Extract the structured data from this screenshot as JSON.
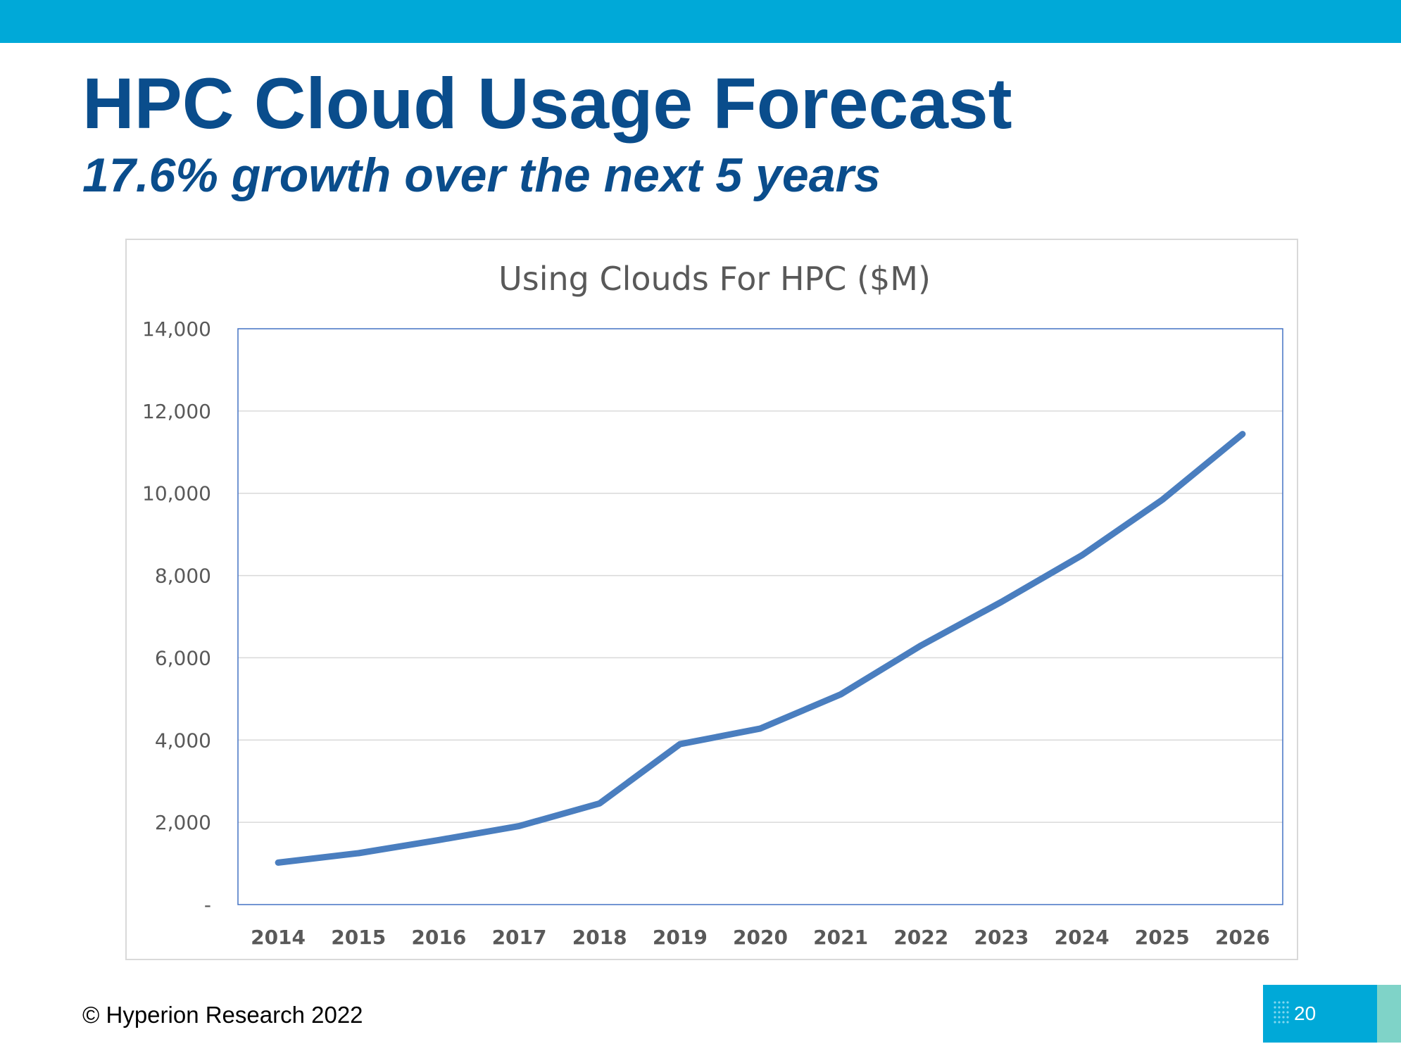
{
  "slide": {
    "title": "HPC Cloud Usage Forecast",
    "subtitle": "17.6% growth over the next 5 years",
    "copyright": "© Hyperion Research 2022",
    "page_number": "20"
  },
  "colors": {
    "top_bar": "#00a9d8",
    "title": "#0a4d8c",
    "line": "#4a7ebf",
    "plot_border": "#4472c4",
    "gridline": "#d9d9d9",
    "page_accent": "#7fd3c8"
  },
  "chart_data": {
    "type": "line",
    "title": "Using Clouds For HPC ($M)",
    "xlabel": "",
    "ylabel": "",
    "categories": [
      "2014",
      "2015",
      "2016",
      "2017",
      "2018",
      "2019",
      "2020",
      "2021",
      "2022",
      "2023",
      "2024",
      "2025",
      "2026"
    ],
    "series": [
      {
        "values": [
          1020,
          1250,
          1570,
          1910,
          2460,
          3900,
          4280,
          5110,
          6300,
          7360,
          8490,
          9840,
          11440
        ]
      }
    ],
    "ylim": [
      0,
      14000
    ],
    "yticks": [
      0,
      2000,
      4000,
      6000,
      8000,
      10000,
      12000,
      14000
    ],
    "ytick_labels": [
      "-",
      "2,000",
      "4,000",
      "6,000",
      "8,000",
      "10,000",
      "12,000",
      "14,000"
    ],
    "grid": true,
    "legend": "none"
  }
}
